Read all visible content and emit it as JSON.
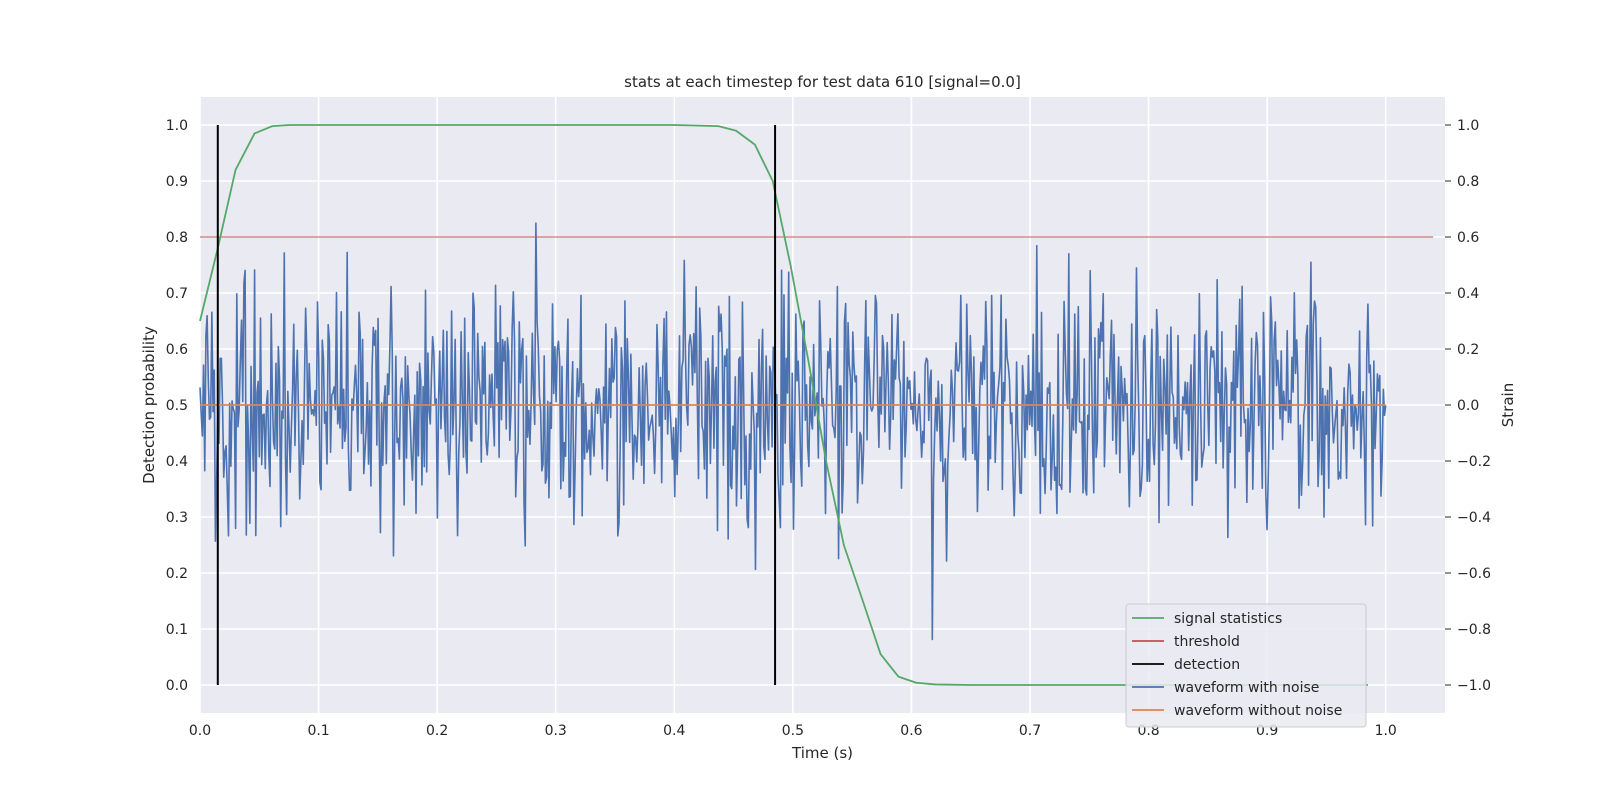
{
  "chart_data": {
    "type": "line",
    "title": "stats at each timestep for test data 610 [signal=0.0]",
    "xlabel": "Time (s)",
    "ylabel_left": "Detection probability",
    "ylabel_right": "Strain",
    "xlim": [
      0.0,
      1.05
    ],
    "ylim_left": [
      -0.05,
      1.05
    ],
    "ylim_right": [
      -1.1,
      1.1
    ],
    "x_ticks": [
      "0.0",
      "0.1",
      "0.2",
      "0.3",
      "0.4",
      "0.5",
      "0.6",
      "0.7",
      "0.8",
      "0.9",
      "1.0"
    ],
    "y_ticks_left": [
      "0.0",
      "0.1",
      "0.2",
      "0.3",
      "0.4",
      "0.5",
      "0.6",
      "0.7",
      "0.8",
      "0.9",
      "1.0"
    ],
    "y_ticks_right": [
      "−1.0",
      "−0.8",
      "−0.6",
      "−0.4",
      "−0.2",
      "0.0",
      "0.2",
      "0.4",
      "0.6",
      "0.8",
      "1.0"
    ],
    "grid": true,
    "background": "#EAEAF2",
    "legend_position": "lower right",
    "series": [
      {
        "name": "signal statistics",
        "axis": "left",
        "color": "#55A868",
        "x": [
          0.0,
          0.015,
          0.03,
          0.046,
          0.061,
          0.076,
          0.091,
          0.2,
          0.3,
          0.4,
          0.437,
          0.452,
          0.468,
          0.483,
          0.498,
          0.513,
          0.528,
          0.543,
          0.559,
          0.574,
          0.589,
          0.604,
          0.62,
          0.65,
          0.7,
          0.8,
          0.9,
          0.985
        ],
        "y": [
          0.65,
          0.78,
          0.92,
          0.985,
          0.998,
          1.0,
          1.0,
          1.0,
          1.0,
          1.0,
          0.998,
          0.99,
          0.965,
          0.9,
          0.75,
          0.58,
          0.4,
          0.25,
          0.15,
          0.055,
          0.015,
          0.004,
          0.001,
          0.0,
          0.0,
          0.0,
          0.0,
          0.0
        ]
      },
      {
        "name": "threshold",
        "axis": "left",
        "color": "#C44E52",
        "x": [
          0.0,
          1.04
        ],
        "y": [
          0.8,
          0.8
        ]
      },
      {
        "name": "detection",
        "axis": "left",
        "color": "#000000",
        "x_positions": [
          0.015,
          0.485
        ],
        "y_range": [
          0.0,
          1.0
        ]
      },
      {
        "name": "waveform with noise",
        "axis": "right",
        "color": "#4C72B0",
        "sampling": "noise-like trace, 1000 samples from 0.0 to 1.0 s, amplitude within ±1.0, approx. std 0.22"
      },
      {
        "name": "waveform without noise",
        "axis": "right",
        "color": "#DD8452",
        "x": [
          0.0,
          1.0
        ],
        "y": [
          0.0,
          0.0
        ]
      }
    ]
  }
}
